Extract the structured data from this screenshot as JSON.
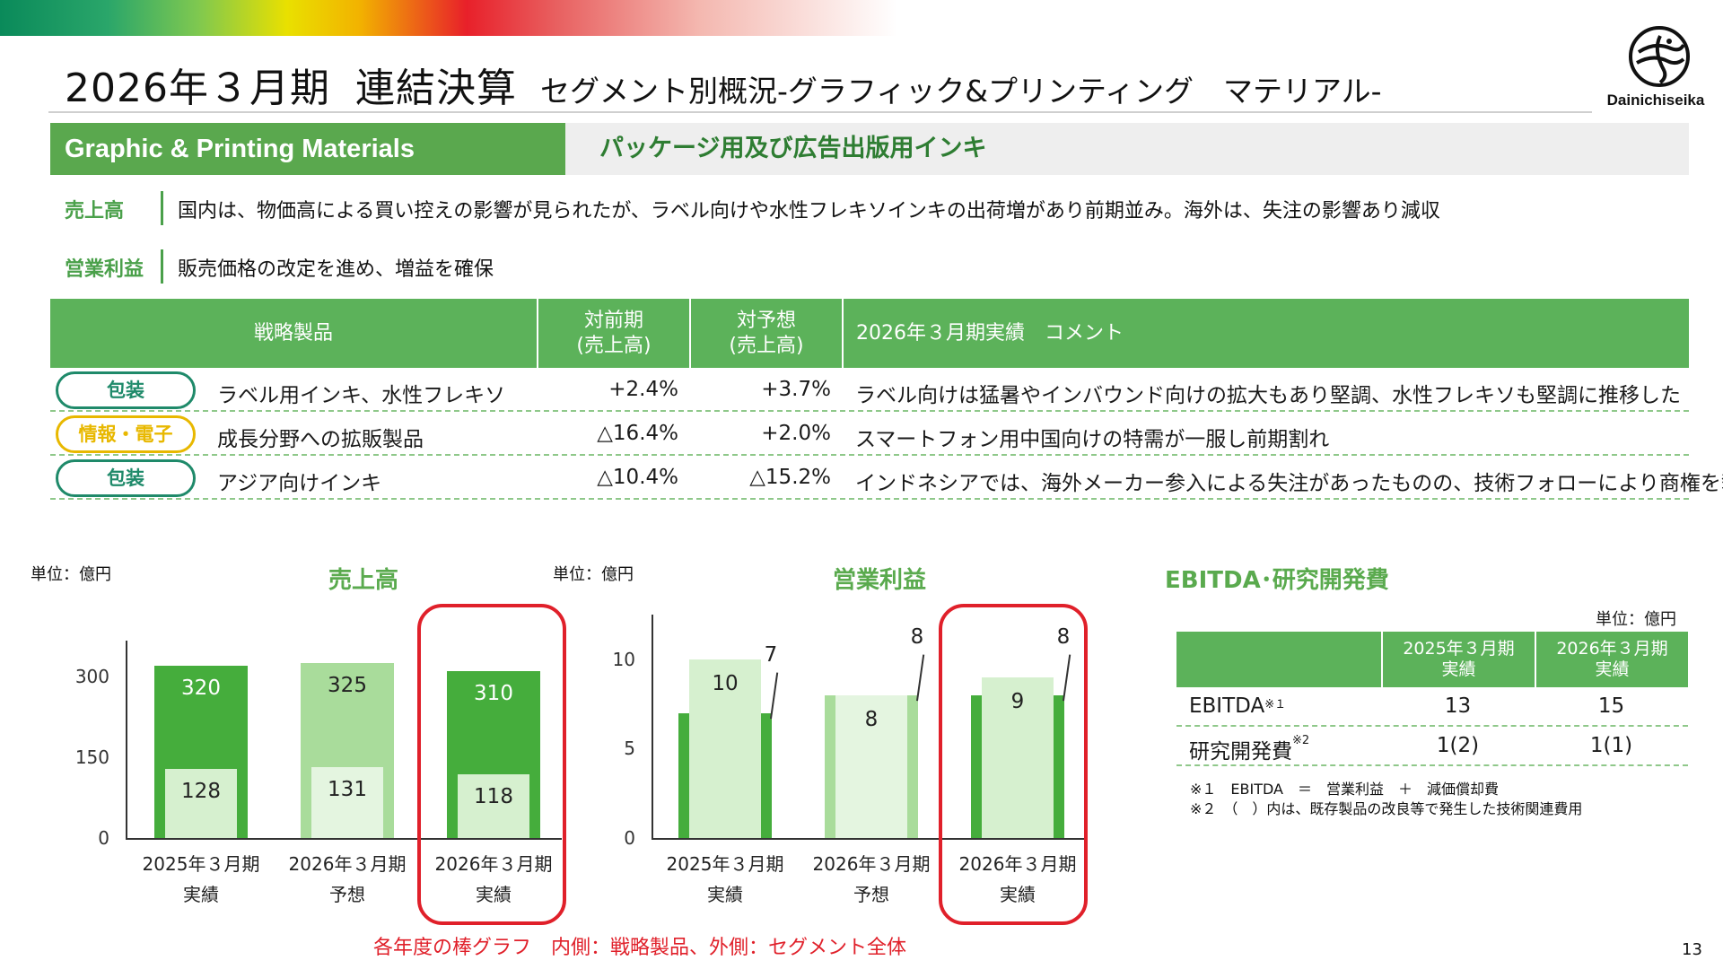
{
  "header": {
    "title_main": "2026年３月期",
    "title_sub": "連結決算",
    "title_segment": "セグメント別概況-グラフィック&プリンティング　マテリアル-",
    "logo_name": "Dainichiseika"
  },
  "segment": {
    "name_en": "Graphic & Printing Materials",
    "name_jp": "パッケージ用及び広告出版用インキ"
  },
  "summary": [
    {
      "label": "売上高",
      "text": "国内は、物価高による買い控えの影響が見られたが、ラベル向けや水性フレキソインキの出荷増があり前期並み。海外は、失注の影響あり減収"
    },
    {
      "label": "営業利益",
      "text": "販売価格の改定を進め、増益を確保"
    }
  ],
  "strategic_table": {
    "headers": {
      "product": "戦略製品",
      "yoy_line1": "対前期",
      "yoy_line2": "(売上高)",
      "vs_forecast_line1": "対予想",
      "vs_forecast_line2": "(売上高)",
      "comment": "2026年３月期実績　コメント"
    },
    "rows": [
      {
        "tag": "包装",
        "tag_color": "#1f8a6a",
        "product": "ラベル用インキ、水性フレキソ",
        "yoy": "+2.4%",
        "vs_forecast": "+3.7%",
        "comment": "ラベル向けは猛暑やインバウンド向けの拡大もあり堅調、水性フレキソも堅調に推移した"
      },
      {
        "tag": "情報・電子",
        "tag_color": "#e8b800",
        "product": "成長分野への拡販製品",
        "yoy": "△16.4%",
        "vs_forecast": "+2.0%",
        "comment": "スマートフォン用中国向けの特需が一服し前期割れ"
      },
      {
        "tag": "包装",
        "tag_color": "#1f8a6a",
        "product": "アジア向けインキ",
        "yoy": "△10.4%",
        "vs_forecast": "△15.2%",
        "comment": "インドネシアでは、海外メーカー参入による失注があったものの、技術フォローにより商権を奪還"
      }
    ]
  },
  "charts_text": {
    "unit_sales": "単位：億円",
    "unit_profit": "単位：億円",
    "sales_title": "売上高",
    "profit_title": "営業利益",
    "caption": "各年度の棒グラフ　内側：戦略製品、外側：セグメント全体"
  },
  "chart_data": [
    {
      "type": "bar",
      "title": "売上高",
      "categories": [
        "2025年３月期\n実績",
        "2026年３月期\n予想",
        "2026年３月期\n実績"
      ],
      "series": [
        {
          "name": "外側：セグメント全体",
          "values": [
            320,
            325,
            310
          ]
        },
        {
          "name": "内側：戦略製品",
          "values": [
            128,
            131,
            118
          ]
        }
      ],
      "yticks": [
        0,
        150,
        300
      ],
      "ylim": [
        0,
        350
      ],
      "highlight_index": 2,
      "colors": {
        "outer": [
          "#45ad3c",
          "#a9dc9b",
          "#45ad3c"
        ],
        "inner": [
          "#d6f0cf",
          "#e4f5e0",
          "#d6f0cf"
        ]
      }
    },
    {
      "type": "bar",
      "title": "営業利益",
      "categories": [
        "2025年３月期\n実績",
        "2026年３月期\n予想",
        "2026年３月期\n実績"
      ],
      "series": [
        {
          "name": "外側：セグメント全体",
          "values": [
            7,
            8,
            8
          ]
        },
        {
          "name": "内側：戦略製品",
          "values": [
            10,
            8,
            9
          ]
        }
      ],
      "yticks": [
        0,
        5,
        10
      ],
      "ylim": [
        0,
        12
      ],
      "highlight_index": 2,
      "colors": {
        "outer": [
          "#45ad3c",
          "#a9dc9b",
          "#45ad3c"
        ],
        "inner": [
          "#d6f0cf",
          "#e4f5e0",
          "#d6f0cf"
        ]
      }
    }
  ],
  "ebitda": {
    "title": "EBITDA･研究開発費",
    "unit": "単位：億円",
    "headers": [
      {
        "line1": "2025年３月期",
        "line2": "実績"
      },
      {
        "line1": "2026年３月期",
        "line2": "実績"
      }
    ],
    "rows": [
      {
        "label": "EBITDA",
        "mark": "※１",
        "values": [
          "13",
          "15"
        ]
      },
      {
        "label": "研究開発費",
        "mark": "※2",
        "values": [
          "1(2)",
          "1(1)"
        ]
      }
    ],
    "notes": [
      "※１　EBITDA　＝　営業利益　＋　減価償却費",
      "※２　（　）内は、既存製品の改良等で発生した技術関連費用"
    ]
  },
  "page_number": "13"
}
